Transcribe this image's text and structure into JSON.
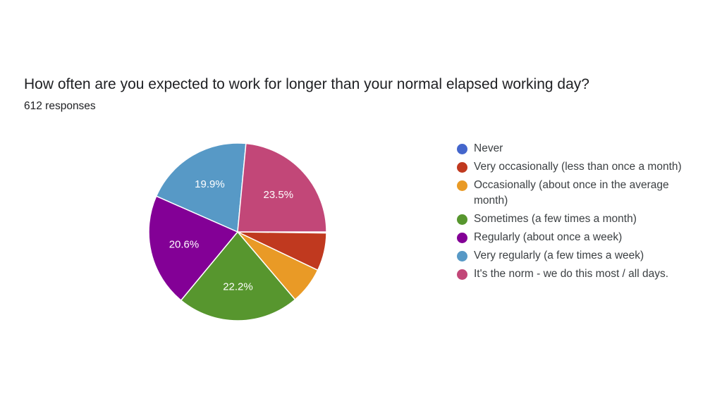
{
  "chart_data": {
    "type": "pie",
    "title": "How often are you expected to work for longer than your normal elapsed working day?",
    "subtitle": "612 responses",
    "legend_position": "right",
    "slices": [
      {
        "label": "Never",
        "value": 0.2,
        "color": "#4466cc",
        "display": ""
      },
      {
        "label": "Very occasionally (less than once a month)",
        "value": 6.9,
        "color": "#c0391f",
        "display": ""
      },
      {
        "label": "Occasionally (about once in the average month)",
        "value": 6.7,
        "color": "#e99a26",
        "display": ""
      },
      {
        "label": "Sometimes (a few times a month)",
        "value": 22.2,
        "color": "#57962e",
        "display": "22.2%"
      },
      {
        "label": "Regularly (about once a week)",
        "value": 20.6,
        "color": "#830096",
        "display": "20.6%"
      },
      {
        "label": "Very regularly (a few times a week)",
        "value": 19.9,
        "color": "#5799c6",
        "display": "19.9%"
      },
      {
        "label": "It's the norm - we do this most / all days.",
        "value": 23.5,
        "color": "#c24778",
        "display": "23.5%"
      }
    ]
  }
}
